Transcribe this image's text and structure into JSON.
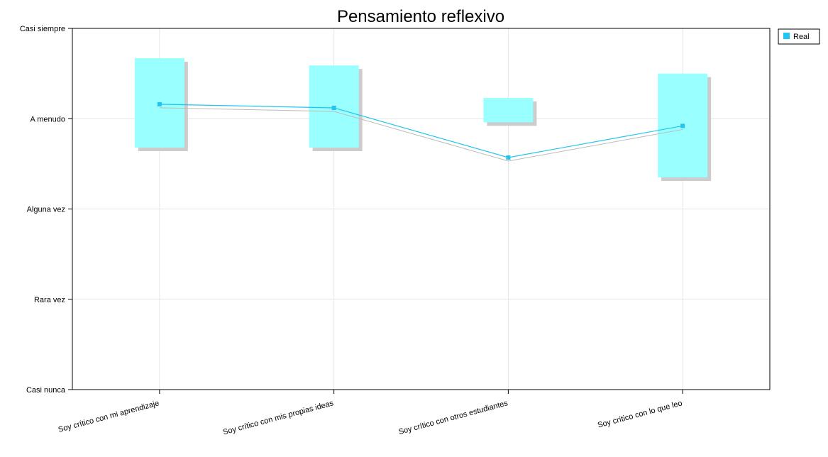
{
  "chart_data": {
    "type": "line",
    "title": "Pensamiento reflexivo",
    "xlabel": "",
    "ylabel": "",
    "y_tick_labels": [
      "Casi nunca",
      "Rara vez",
      "Alguna vez",
      "A menudo",
      "Casi siempre"
    ],
    "ylim": [
      1,
      5
    ],
    "categories": [
      "Soy crítico con mi aprendizaje",
      "Soy crítico con mis propias ideas",
      "Soy crítico con otros estudiantes",
      "Soy crítico con lo que leo"
    ],
    "series": [
      {
        "name": "Real",
        "color": "#22c4f0",
        "values": [
          4.16,
          4.12,
          3.57,
          3.92
        ],
        "ranges": [
          [
            3.68,
            4.67
          ],
          [
            3.68,
            4.59
          ],
          [
            3.96,
            4.23
          ],
          [
            3.35,
            4.5
          ]
        ]
      }
    ],
    "range_color": "#99ffff",
    "shadow_color": "#cccccc",
    "grid": true,
    "legend": {
      "position": "top-right",
      "entries": [
        "Real"
      ]
    }
  }
}
